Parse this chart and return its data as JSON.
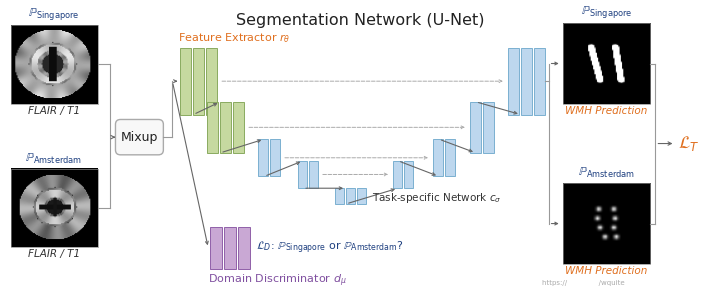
{
  "title": "Segmentation Network (U-Net)",
  "bg_color": "#ffffff",
  "text_singapore": "$\\mathbb{P}_{\\mathrm{Singapore}}$",
  "text_amsterdam": "$\\mathbb{P}_{\\mathrm{Amsterdam}}$",
  "text_flair_t1": "FLAIR / T1",
  "text_mixup": "Mixup",
  "text_feature_extractor": "Feature Extractor $r_{\\theta}$",
  "text_domain_discriminator": "Domain Discriminator $d_{\\mu}$",
  "text_task_specific": "Task-specific Network $c_{\\sigma}$",
  "text_ld": "$\\mathcal{L}_D$: $\\mathbb{P}_{\\mathrm{Singapore}}$ or $\\mathbb{P}_{\\mathrm{Amsterdam}}$?",
  "text_wmh": "WMH Prediction",
  "text_lt": "$\\mathcal{L}_T$",
  "text_singapore2": "$\\mathbb{P}_{\\mathrm{Singapore}}$",
  "text_amsterdam2": "$\\mathbb{P}_{\\mathrm{Amsterdam}}$",
  "text_url": "https://",
  "color_green": "#c6d9a0",
  "color_green_edge": "#8aaa60",
  "color_blue": "#bdd7ee",
  "color_blue_edge": "#7ab0d0",
  "color_purple": "#c9a8d4",
  "color_purple_edge": "#9060a8",
  "color_orange": "#e07020",
  "color_dark_blue": "#1f4080",
  "color_purple_text": "#8050a0",
  "color_arrow": "#666666",
  "color_gray_line": "#999999"
}
